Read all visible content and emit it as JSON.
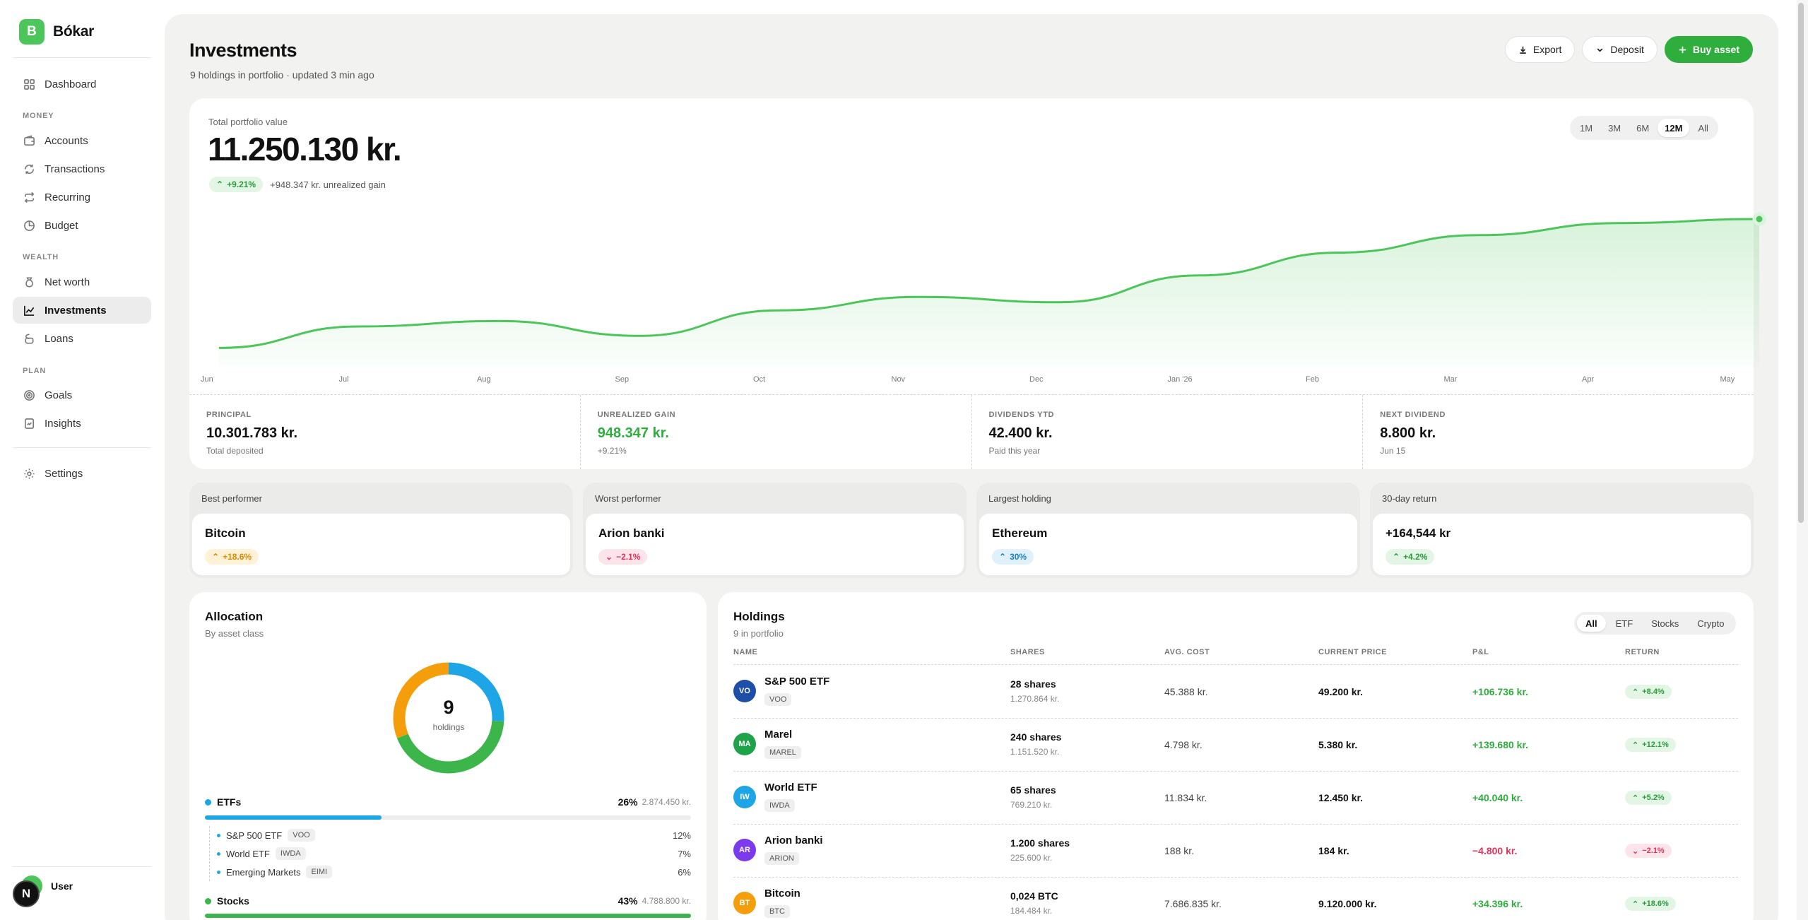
{
  "app": {
    "logo_letter": "B",
    "name": "Bókar"
  },
  "sidebar": {
    "items": [
      {
        "label": "Dashboard",
        "icon": "grid-icon"
      },
      {
        "label": "Accounts",
        "icon": "wallet-icon"
      },
      {
        "label": "Transactions",
        "icon": "refresh-icon"
      },
      {
        "label": "Recurring",
        "icon": "repeat-icon"
      },
      {
        "label": "Budget",
        "icon": "pie-icon"
      },
      {
        "label": "Net worth",
        "icon": "bag-icon"
      },
      {
        "label": "Investments",
        "icon": "chart-icon"
      },
      {
        "label": "Loans",
        "icon": "coins-icon"
      },
      {
        "label": "Goals",
        "icon": "target-icon"
      },
      {
        "label": "Insights",
        "icon": "doc-icon"
      },
      {
        "label": "Settings",
        "icon": "gear-icon"
      }
    ],
    "sections": {
      "money": "MONEY",
      "wealth": "WEALTH",
      "plan": "PLAN"
    },
    "active": "Investments",
    "user": "User",
    "badge": "N"
  },
  "header": {
    "title": "Investments",
    "subtitle": "9 holdings in portfolio · updated 3 min ago",
    "actions": {
      "export": "Export",
      "deposit": "Deposit",
      "buy": "Buy asset"
    }
  },
  "portfolio": {
    "label": "Total portfolio value",
    "value": "11.250.130 kr.",
    "change_pct": "+9.21%",
    "change_text": "+948.347 kr. unrealized gain",
    "ranges": [
      "1M",
      "3M",
      "6M",
      "12M",
      "All"
    ],
    "active_range": "12M"
  },
  "chart_data": {
    "type": "area",
    "x": [
      "Jun",
      "Jul",
      "Aug",
      "Sep",
      "Oct",
      "Nov",
      "Dec",
      "Jan '26",
      "Feb",
      "Mar",
      "Apr",
      "May"
    ],
    "values": [
      0.04,
      0.2,
      0.24,
      0.13,
      0.32,
      0.42,
      0.38,
      0.58,
      0.75,
      0.88,
      0.97,
      1.0
    ],
    "color": "#4cc65a",
    "grid": false
  },
  "stats": [
    {
      "label": "PRINCIPAL",
      "value": "10.301.783 kr.",
      "sub": "Total deposited",
      "green": false
    },
    {
      "label": "UNREALIZED GAIN",
      "value": "948.347 kr.",
      "sub": "+9.21%",
      "green": true
    },
    {
      "label": "DIVIDENDS YTD",
      "value": "42.400 kr.",
      "sub": "Paid this year",
      "green": false
    },
    {
      "label": "NEXT DIVIDEND",
      "value": "8.800 kr.",
      "sub": "Jun 15",
      "green": false
    }
  ],
  "performers": [
    {
      "label": "Best performer",
      "name": "Bitcoin",
      "pill": "+18.6%",
      "style": "orange"
    },
    {
      "label": "Worst performer",
      "name": "Arion banki",
      "pill": "−2.1%",
      "style": "red"
    },
    {
      "label": "Largest holding",
      "name": "Ethereum",
      "pill": "30%",
      "style": "blue"
    },
    {
      "label": "30-day return",
      "name": "+164,544 kr",
      "pill": "+4.2%",
      "style": "green"
    }
  ],
  "allocation": {
    "title": "Allocation",
    "subtitle": "By asset class",
    "count": "9",
    "count_label": "holdings",
    "classes": [
      {
        "name": "ETFs",
        "pct": "26%",
        "amount": "2.874.450 kr.",
        "color": "#1ea5e6",
        "fraction": 0.26
      },
      {
        "name": "Stocks",
        "pct": "43%",
        "amount": "4.788.800 kr.",
        "color": "#3cb54a",
        "fraction": 0.43
      }
    ],
    "crypto_color": "#f59e0b",
    "crypto_fraction": 0.31,
    "etf_items": [
      {
        "name": "S&P 500 ETF",
        "ticker": "VOO",
        "pct": "12%"
      },
      {
        "name": "World ETF",
        "ticker": "IWDA",
        "pct": "7%"
      },
      {
        "name": "Emerging Markets",
        "ticker": "EIMI",
        "pct": "6%"
      }
    ]
  },
  "holdings": {
    "title": "Holdings",
    "subtitle": "9 in portfolio",
    "filters": [
      "All",
      "ETF",
      "Stocks",
      "Crypto"
    ],
    "active_filter": "All",
    "columns": [
      "NAME",
      "SHARES",
      "AVG. COST",
      "CURRENT PRICE",
      "P&L",
      "RETURN"
    ],
    "rows": [
      {
        "initials": "VO",
        "color": "#1d4fa8",
        "name": "S&P 500 ETF",
        "ticker": "VOO",
        "shares": "28 shares",
        "value": "1.270.864 kr.",
        "avg": "45.388 kr.",
        "price": "49.200 kr.",
        "pl": "+106.736 kr.",
        "ret": "+8.4%",
        "up": true
      },
      {
        "initials": "MA",
        "color": "#1fa34a",
        "name": "Marel",
        "ticker": "MAREL",
        "shares": "240 shares",
        "value": "1.151.520 kr.",
        "avg": "4.798 kr.",
        "price": "5.380 kr.",
        "pl": "+139.680 kr.",
        "ret": "+12.1%",
        "up": true
      },
      {
        "initials": "IW",
        "color": "#1ea5e6",
        "name": "World ETF",
        "ticker": "IWDA",
        "shares": "65 shares",
        "value": "769.210 kr.",
        "avg": "11.834 kr.",
        "price": "12.450 kr.",
        "pl": "+40.040 kr.",
        "ret": "+5.2%",
        "up": true
      },
      {
        "initials": "AR",
        "color": "#7c3aed",
        "name": "Arion banki",
        "ticker": "ARION",
        "shares": "1.200 shares",
        "value": "225.600 kr.",
        "avg": "188 kr.",
        "price": "184 kr.",
        "pl": "−4.800 kr.",
        "ret": "−2.1%",
        "up": false
      },
      {
        "initials": "BT",
        "color": "#f59e0b",
        "name": "Bitcoin",
        "ticker": "BTC",
        "shares": "0,024 BTC",
        "value": "184.484 kr.",
        "avg": "7.686.835 kr.",
        "price": "9.120.000 kr.",
        "pl": "+34.396 kr.",
        "ret": "+18.6%",
        "up": true
      }
    ]
  }
}
